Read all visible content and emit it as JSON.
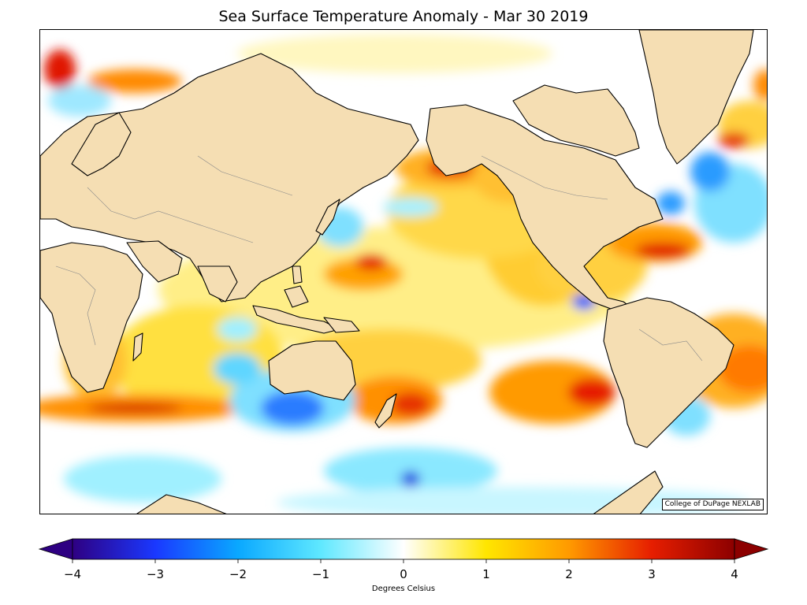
{
  "title": "Sea Surface Temperature Anomaly - Mar 30 2019",
  "credit": "College of DuPage NEXLAB",
  "colorbar": {
    "label": "Degrees Celsius",
    "min": -4,
    "max": 4,
    "ticks": [
      {
        "value": -4,
        "label": "−4"
      },
      {
        "value": -3,
        "label": "−3"
      },
      {
        "value": -2,
        "label": "−2"
      },
      {
        "value": -1,
        "label": "−1"
      },
      {
        "value": 0,
        "label": "0"
      },
      {
        "value": 1,
        "label": "1"
      },
      {
        "value": 2,
        "label": "2"
      },
      {
        "value": 3,
        "label": "3"
      },
      {
        "value": 4,
        "label": "4"
      }
    ],
    "colors": [
      "#2e0082",
      "#1a38ff",
      "#0aa8ff",
      "#5fe8ff",
      "#ffffff",
      "#ffe600",
      "#ff9a00",
      "#e61e00",
      "#8c0000"
    ]
  },
  "colors": {
    "land": "#f5deb3",
    "coast": "#000000",
    "border": "#888888",
    "ice": "#ffffff"
  }
}
